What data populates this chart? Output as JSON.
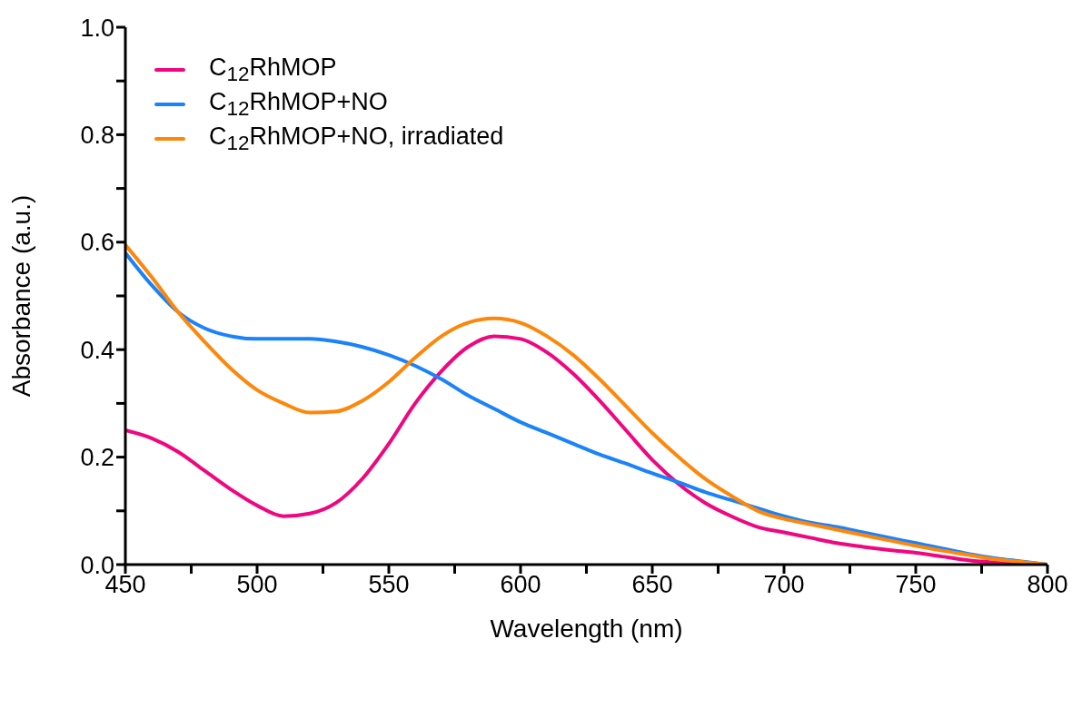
{
  "chart_data": {
    "type": "line",
    "xlabel": "Wavelength (nm)",
    "ylabel": "Absorbance (a.u.)",
    "x": [
      450,
      460,
      470,
      480,
      490,
      500,
      510,
      520,
      530,
      540,
      550,
      560,
      570,
      580,
      590,
      600,
      610,
      620,
      630,
      640,
      650,
      660,
      670,
      680,
      690,
      700,
      710,
      720,
      730,
      740,
      750,
      760,
      770,
      780,
      790,
      800
    ],
    "series": [
      {
        "name": "C$_{12}$RhMOP",
        "color": "#f0067f",
        "values": [
          0.25,
          0.235,
          0.21,
          0.175,
          0.14,
          0.11,
          0.09,
          0.095,
          0.115,
          0.16,
          0.225,
          0.3,
          0.36,
          0.405,
          0.425,
          0.42,
          0.395,
          0.355,
          0.305,
          0.25,
          0.195,
          0.15,
          0.115,
          0.09,
          0.07,
          0.06,
          0.05,
          0.04,
          0.033,
          0.027,
          0.022,
          0.015,
          0.008,
          0.004,
          0.002,
          0
        ]
      },
      {
        "name": "C$_{12}$RhMOP+NO",
        "color": "#1a82fb",
        "values": [
          0.58,
          0.52,
          0.47,
          0.44,
          0.425,
          0.42,
          0.42,
          0.42,
          0.415,
          0.405,
          0.39,
          0.37,
          0.345,
          0.315,
          0.29,
          0.265,
          0.245,
          0.225,
          0.205,
          0.188,
          0.17,
          0.153,
          0.135,
          0.12,
          0.105,
          0.09,
          0.078,
          0.07,
          0.06,
          0.05,
          0.04,
          0.03,
          0.02,
          0.012,
          0.006,
          0
        ]
      },
      {
        "name": "C$_{12}$RhMOP+NO, irradiated",
        "color": "#fe8709",
        "values": [
          0.595,
          0.535,
          0.47,
          0.415,
          0.365,
          0.325,
          0.3,
          0.283,
          0.285,
          0.305,
          0.34,
          0.385,
          0.425,
          0.45,
          0.458,
          0.45,
          0.425,
          0.39,
          0.345,
          0.295,
          0.245,
          0.2,
          0.16,
          0.128,
          0.1,
          0.085,
          0.075,
          0.065,
          0.055,
          0.045,
          0.035,
          0.026,
          0.018,
          0.01,
          0.005,
          0
        ]
      }
    ],
    "xlim": [
      450,
      800
    ],
    "xticks": [
      450,
      {
        "value": 475,
        "label": null
      },
      500,
      {
        "value": 525,
        "label": null
      },
      550,
      {
        "value": 575,
        "label": null
      },
      600,
      {
        "value": 625,
        "label": null
      },
      650,
      {
        "value": 675,
        "label": null
      },
      700,
      {
        "value": 725,
        "label": null
      },
      750,
      {
        "value": 775,
        "label": null
      },
      800
    ],
    "ylim": [
      0,
      1
    ],
    "yticks": [
      {
        "value": 0,
        "label": "0.0"
      },
      {
        "value": 0.1,
        "label": null
      },
      {
        "value": 0.2,
        "label": "0.2"
      },
      {
        "value": 0.3,
        "label": null
      },
      {
        "value": 0.4,
        "label": "0.4"
      },
      {
        "value": 0.5,
        "label": null
      },
      {
        "value": 0.6,
        "label": "0.6"
      },
      {
        "value": 0.7,
        "label": null
      },
      {
        "value": 0.8,
        "label": "0.8"
      },
      {
        "value": 0.9,
        "label": null
      },
      {
        "value": 1,
        "label": "1.0"
      }
    ],
    "grid": false,
    "legend": "top left",
    "marker": "none",
    "line_style": "solid"
  }
}
